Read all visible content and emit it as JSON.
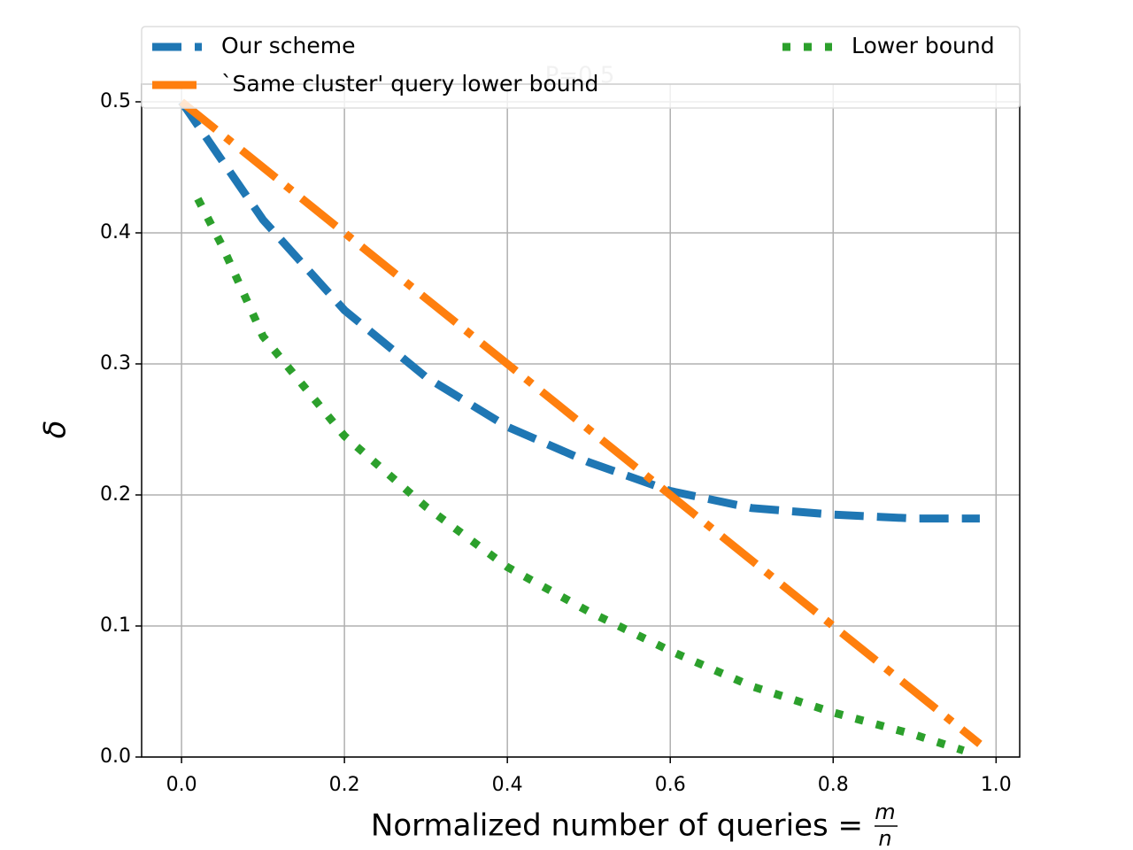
{
  "chart_data": {
    "type": "line",
    "title": "P=0.5",
    "xlabel": "Normalized number of queries =",
    "xlabel_fraction": {
      "numerator": "m",
      "denominator": "n"
    },
    "ylabel": "δ",
    "xlim": [
      -0.049,
      1.029
    ],
    "ylim": [
      0,
      0.5
    ],
    "xticks": [
      {
        "value": 0,
        "label": "0.0"
      },
      0.2,
      0.4,
      0.6,
      0.8,
      {
        "value": 1,
        "label": "1.0"
      }
    ],
    "yticks": [
      {
        "value": 0,
        "label": "0.0"
      },
      0.1,
      0.2,
      0.3,
      0.4,
      0.5
    ],
    "grid": true,
    "legend": "upper center",
    "series": [
      {
        "name": "Our scheme",
        "color": "#1f77b4",
        "linestyle": "dashed",
        "x": [
          0,
          0.1,
          0.2,
          0.3,
          0.4,
          0.5,
          0.6,
          0.7,
          0.8,
          0.9,
          0.98
        ],
        "values": [
          0.5,
          0.41,
          0.341,
          0.29,
          0.252,
          0.225,
          0.203,
          0.19,
          0.185,
          0.182,
          0.182
        ]
      },
      {
        "name": "`Same cluster' query lower bound",
        "color": "#ff7f0e",
        "linestyle": "dashdot",
        "x": [
          0,
          0.2,
          0.4,
          0.6,
          0.8,
          0.98
        ],
        "values": [
          0.5,
          0.4,
          0.3,
          0.2,
          0.1,
          0.01
        ]
      },
      {
        "name": "Lower bound",
        "color": "#2ca02c",
        "linestyle": "dotted",
        "x": [
          0.02,
          0.05,
          0.1,
          0.2,
          0.3,
          0.4,
          0.5,
          0.6,
          0.7,
          0.8,
          0.9,
          0.96
        ],
        "values": [
          0.426,
          0.39,
          0.321,
          0.245,
          0.191,
          0.145,
          0.111,
          0.081,
          0.054,
          0.034,
          0.017,
          0.005
        ]
      }
    ]
  }
}
